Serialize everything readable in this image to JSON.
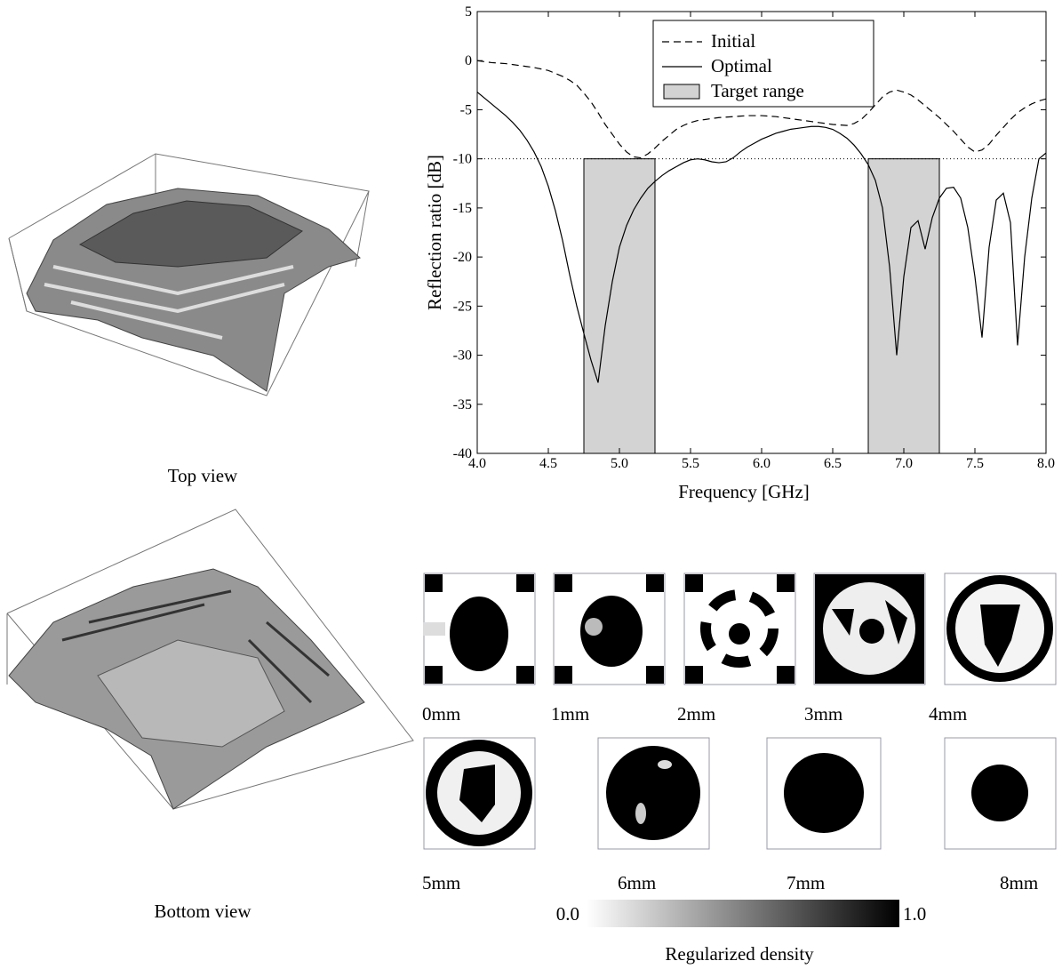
{
  "chart_data": {
    "type": "line",
    "x": [
      4.0,
      4.05,
      4.1,
      4.15,
      4.2,
      4.25,
      4.3,
      4.35,
      4.4,
      4.45,
      4.5,
      4.55,
      4.6,
      4.65,
      4.7,
      4.75,
      4.8,
      4.85,
      4.9,
      4.95,
      5.0,
      5.05,
      5.1,
      5.15,
      5.2,
      5.25,
      5.3,
      5.35,
      5.4,
      5.45,
      5.5,
      5.55,
      5.6,
      5.65,
      5.7,
      5.75,
      5.8,
      5.85,
      5.9,
      5.95,
      6.0,
      6.05,
      6.1,
      6.15,
      6.2,
      6.25,
      6.3,
      6.35,
      6.4,
      6.45,
      6.5,
      6.55,
      6.6,
      6.65,
      6.7,
      6.75,
      6.8,
      6.85,
      6.9,
      6.95,
      7.0,
      7.05,
      7.1,
      7.15,
      7.2,
      7.25,
      7.3,
      7.35,
      7.4,
      7.45,
      7.5,
      7.55,
      7.6,
      7.65,
      7.7,
      7.75,
      7.8,
      7.85,
      7.9,
      7.95,
      8.0
    ],
    "series": [
      {
        "name": "Initial",
        "color": "#000000",
        "linestyle": "dashed",
        "values": [
          0,
          -0.1,
          -0.2,
          -0.25,
          -0.3,
          -0.4,
          -0.5,
          -0.6,
          -0.7,
          -0.85,
          -1.0,
          -1.3,
          -1.6,
          -2.0,
          -2.5,
          -3.3,
          -4.2,
          -5.3,
          -6.5,
          -7.5,
          -8.5,
          -9.3,
          -9.8,
          -9.9,
          -9.5,
          -8.9,
          -8.2,
          -7.6,
          -7.0,
          -6.6,
          -6.3,
          -6.1,
          -6.0,
          -5.9,
          -5.8,
          -5.75,
          -5.7,
          -5.65,
          -5.6,
          -5.6,
          -5.6,
          -5.65,
          -5.7,
          -5.8,
          -5.9,
          -6.0,
          -6.1,
          -6.2,
          -6.3,
          -6.4,
          -6.5,
          -6.55,
          -6.6,
          -6.4,
          -6.0,
          -5.3,
          -4.5,
          -3.7,
          -3.2,
          -3.0,
          -3.2,
          -3.5,
          -4.0,
          -4.6,
          -5.2,
          -5.8,
          -6.5,
          -7.2,
          -8.0,
          -8.8,
          -9.3,
          -9.1,
          -8.5,
          -7.6,
          -6.8,
          -6.0,
          -5.3,
          -4.8,
          -4.4,
          -4.1,
          -3.9
        ]
      },
      {
        "name": "Optimal",
        "color": "#000000",
        "linestyle": "solid",
        "values": [
          -3.2,
          -3.8,
          -4.4,
          -5.0,
          -5.6,
          -6.3,
          -7.1,
          -8.1,
          -9.3,
          -10.8,
          -12.8,
          -15.3,
          -18.3,
          -21.8,
          -25.0,
          -27.8,
          -30.5,
          -32.8,
          -27.0,
          -22.5,
          -19.0,
          -16.8,
          -15.2,
          -14.0,
          -13.0,
          -12.3,
          -11.7,
          -11.2,
          -10.8,
          -10.4,
          -10.1,
          -10.0,
          -10.1,
          -10.3,
          -10.4,
          -10.3,
          -9.9,
          -9.3,
          -8.8,
          -8.4,
          -8.0,
          -7.7,
          -7.4,
          -7.2,
          -7.0,
          -6.9,
          -6.8,
          -6.7,
          -6.7,
          -6.8,
          -7.0,
          -7.4,
          -7.9,
          -8.6,
          -9.5,
          -10.6,
          -12.2,
          -15.0,
          -21.0,
          -30.0,
          -22.0,
          -17.0,
          -16.3,
          -19.2,
          -16.0,
          -14.0,
          -13.0,
          -12.9,
          -14.0,
          -17.0,
          -22.0,
          -28.2,
          -19.0,
          -14.2,
          -13.5,
          -16.5,
          -29.0,
          -20.0,
          -14.0,
          -10.0,
          -9.4
        ]
      }
    ],
    "bands": {
      "name": "Target range",
      "color": "#d3d3d3",
      "ranges": [
        [
          4.75,
          5.25
        ],
        [
          6.75,
          7.25
        ]
      ]
    },
    "threshold": -10,
    "xlabel": "Frequency [GHz]",
    "ylabel": "Reflection ratio [dB]",
    "xlim": [
      4.0,
      8.0
    ],
    "xticks": [
      {
        "value": 4,
        "label": "4.0"
      },
      {
        "value": 4.5,
        "label": "4.5"
      },
      {
        "value": 5,
        "label": "5.0"
      },
      {
        "value": 5.5,
        "label": "5.5"
      },
      {
        "value": 6,
        "label": "6.0"
      },
      {
        "value": 6.5,
        "label": "6.5"
      },
      {
        "value": 7,
        "label": "7.0"
      },
      {
        "value": 7.5,
        "label": "7.5"
      },
      {
        "value": 8,
        "label": "8.0"
      }
    ],
    "ylim": [
      -40,
      5
    ],
    "yticks": [
      -40,
      -35,
      -30,
      -25,
      -20,
      -15,
      -10,
      -5,
      0,
      5
    ],
    "legend": "upper center"
  },
  "panels": {
    "top_view": "Top view",
    "bottom_view": "Bottom view"
  },
  "slices": [
    "0mm",
    "1mm",
    "2mm",
    "3mm",
    "4mm",
    "5mm",
    "6mm",
    "7mm",
    "8mm"
  ],
  "colorbar": {
    "min_label": "0.0",
    "max_label": "1.0",
    "label": "Regularized density"
  }
}
